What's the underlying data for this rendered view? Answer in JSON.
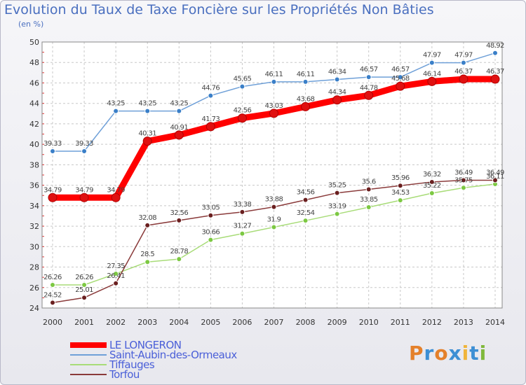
{
  "header": {
    "title": "Evolution du Taux de Taxe Foncière sur les Propriétés Non Bâties",
    "subtitle": "(en %)"
  },
  "logo": {
    "text": "Proxiti",
    "letters": [
      "P",
      "r",
      "o",
      "x",
      "i",
      "t",
      "i"
    ],
    "colors": [
      "#e4802a",
      "#3d8fd4",
      "#e4802a",
      "#3d8fd4",
      "#f0b43a",
      "#3d8fd4",
      "#80b83c"
    ]
  },
  "chart_data": {
    "type": "line",
    "title": "Evolution du Taux de Taxe Foncière sur les Propriétés Non Bâties",
    "ylabel": "(en %)",
    "xlabel": "",
    "ylim": [
      24,
      50
    ],
    "yticks": [
      24,
      26,
      28,
      30,
      32,
      34,
      36,
      38,
      40,
      42,
      44,
      46,
      48,
      50
    ],
    "categories": [
      "2000",
      "2001",
      "2002",
      "2003",
      "2004",
      "2005",
      "2006",
      "2007",
      "2008",
      "2009",
      "2010",
      "2011",
      "2012",
      "2013",
      "2014"
    ],
    "grid": true,
    "legend": "bottom-left",
    "series": [
      {
        "name": "LE LONGERON",
        "color": "#ff0000",
        "marker": "#e01010",
        "thick": true,
        "values": [
          34.79,
          34.79,
          34.79,
          40.31,
          40.91,
          41.73,
          42.56,
          43.03,
          43.68,
          44.34,
          44.78,
          45.68,
          46.14,
          46.37,
          46.37
        ],
        "labels": [
          "34.79",
          "34.79",
          "34.79",
          "40.31",
          "40.91",
          "41.73",
          "42.56",
          "43.03",
          "43.68",
          "44.34",
          "44.78",
          "45.68",
          "46.14",
          "46.37",
          "46.37"
        ]
      },
      {
        "name": "Saint-Aubin-des-Ormeaux",
        "color": "#6fa0d8",
        "marker": "#3a7fc8",
        "thick": false,
        "values": [
          39.33,
          39.33,
          43.25,
          43.25,
          43.25,
          44.76,
          45.65,
          46.11,
          46.11,
          46.34,
          46.57,
          46.57,
          47.97,
          47.97,
          48.92
        ],
        "labels": [
          "39.33",
          "39.33",
          "43.25",
          "43.25",
          "43.25",
          "44.76",
          "45.65",
          "46.11",
          "46.11",
          "46.34",
          "46.57",
          "46.57",
          "47.97",
          "47.97",
          "48.92"
        ]
      },
      {
        "name": "Tiffauges",
        "color": "#a8dc78",
        "marker": "#7cc842",
        "thick": false,
        "values": [
          26.26,
          26.26,
          27.35,
          28.5,
          28.78,
          30.66,
          31.27,
          31.9,
          32.54,
          33.19,
          33.85,
          34.53,
          35.22,
          35.75,
          36.11
        ],
        "labels": [
          "26.26",
          "26.26",
          "27.35",
          "28.5",
          "28.78",
          "30.66",
          "31.27",
          "31.9",
          "32.54",
          "33.19",
          "33.85",
          "34.53",
          "35.22",
          "35.75",
          "36.11"
        ]
      },
      {
        "name": "Torfou",
        "color": "#8a3a3a",
        "marker": "#6a1f1f",
        "thick": false,
        "values": [
          24.52,
          25.01,
          26.41,
          32.08,
          32.56,
          33.05,
          33.38,
          33.88,
          34.56,
          35.25,
          35.6,
          35.96,
          36.32,
          36.49,
          36.49
        ],
        "labels": [
          "24.52",
          "25.01",
          "26.41",
          "32.08",
          "32.56",
          "33.05",
          "33.38",
          "33.88",
          "34.56",
          "35.25",
          "35.6",
          "35.96",
          "36.32",
          "36.49",
          "36.49"
        ]
      }
    ]
  }
}
